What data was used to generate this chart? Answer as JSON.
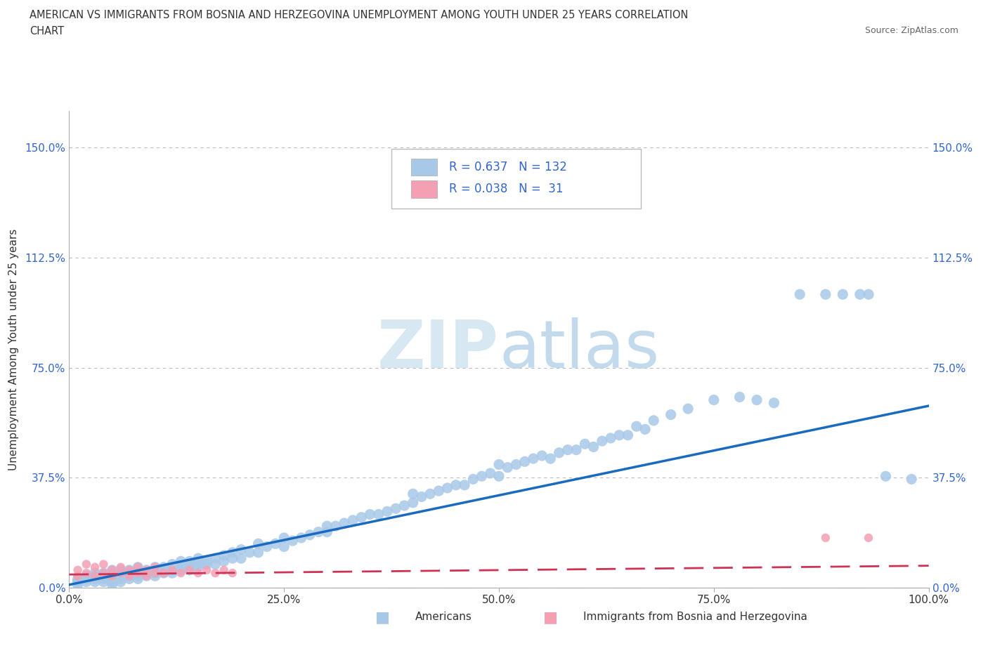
{
  "title_line1": "AMERICAN VS IMMIGRANTS FROM BOSNIA AND HERZEGOVINA UNEMPLOYMENT AMONG YOUTH UNDER 25 YEARS CORRELATION",
  "title_line2": "CHART",
  "source": "Source: ZipAtlas.com",
  "ylabel": "Unemployment Among Youth under 25 years",
  "xlim": [
    0.0,
    1.0
  ],
  "ylim": [
    0.0,
    1.625
  ],
  "xticks": [
    0.0,
    0.25,
    0.5,
    0.75,
    1.0
  ],
  "yticks": [
    0.0,
    0.375,
    0.75,
    1.125,
    1.5
  ],
  "xtick_labels": [
    "0.0%",
    "25.0%",
    "50.0%",
    "75.0%",
    "100.0%"
  ],
  "ytick_labels": [
    "0.0%",
    "37.5%",
    "75.0%",
    "112.5%",
    "150.0%"
  ],
  "color_american": "#a8c8e8",
  "color_immigrant": "#f4a0b4",
  "line_color_american": "#1a6bbf",
  "line_color_immigrant": "#cc3355",
  "R_american": 0.637,
  "N_american": 132,
  "R_immigrant": 0.038,
  "N_immigrant": 31,
  "watermark_zip": "ZIP",
  "watermark_atlas": "atlas",
  "legend_american": "Americans",
  "legend_immigrant": "Immigrants from Bosnia and Herzegovina",
  "am_line_x0": 0.0,
  "am_line_y0": 0.01,
  "am_line_x1": 1.0,
  "am_line_y1": 0.62,
  "im_line_x0": 0.0,
  "im_line_y0": 0.045,
  "im_line_x1": 1.0,
  "im_line_y1": 0.075,
  "americans_x": [
    0.01,
    0.01,
    0.01,
    0.01,
    0.02,
    0.02,
    0.02,
    0.02,
    0.03,
    0.03,
    0.03,
    0.03,
    0.04,
    0.04,
    0.04,
    0.04,
    0.05,
    0.05,
    0.05,
    0.05,
    0.05,
    0.05,
    0.06,
    0.06,
    0.06,
    0.06,
    0.07,
    0.07,
    0.07,
    0.07,
    0.08,
    0.08,
    0.08,
    0.08,
    0.09,
    0.09,
    0.09,
    0.1,
    0.1,
    0.1,
    0.1,
    0.11,
    0.11,
    0.11,
    0.12,
    0.12,
    0.12,
    0.13,
    0.13,
    0.13,
    0.14,
    0.14,
    0.14,
    0.15,
    0.15,
    0.15,
    0.16,
    0.16,
    0.17,
    0.17,
    0.18,
    0.18,
    0.19,
    0.19,
    0.2,
    0.2,
    0.21,
    0.22,
    0.22,
    0.23,
    0.24,
    0.25,
    0.25,
    0.26,
    0.27,
    0.28,
    0.29,
    0.3,
    0.3,
    0.31,
    0.32,
    0.33,
    0.34,
    0.35,
    0.36,
    0.37,
    0.38,
    0.39,
    0.4,
    0.4,
    0.41,
    0.42,
    0.43,
    0.44,
    0.45,
    0.46,
    0.47,
    0.48,
    0.49,
    0.5,
    0.5,
    0.51,
    0.52,
    0.53,
    0.54,
    0.55,
    0.56,
    0.57,
    0.58,
    0.59,
    0.6,
    0.61,
    0.62,
    0.63,
    0.64,
    0.65,
    0.66,
    0.67,
    0.68,
    0.7,
    0.72,
    0.75,
    0.78,
    0.8,
    0.82,
    0.85,
    0.88,
    0.9,
    0.92,
    0.93,
    0.95,
    0.98
  ],
  "americans_y": [
    0.01,
    0.02,
    0.02,
    0.03,
    0.02,
    0.03,
    0.03,
    0.04,
    0.02,
    0.03,
    0.04,
    0.05,
    0.02,
    0.03,
    0.04,
    0.05,
    0.01,
    0.02,
    0.03,
    0.04,
    0.05,
    0.06,
    0.02,
    0.03,
    0.05,
    0.06,
    0.03,
    0.04,
    0.05,
    0.06,
    0.03,
    0.04,
    0.05,
    0.07,
    0.04,
    0.05,
    0.06,
    0.04,
    0.05,
    0.06,
    0.07,
    0.05,
    0.06,
    0.07,
    0.05,
    0.06,
    0.08,
    0.06,
    0.07,
    0.09,
    0.06,
    0.08,
    0.09,
    0.07,
    0.08,
    0.1,
    0.08,
    0.09,
    0.08,
    0.1,
    0.09,
    0.11,
    0.1,
    0.12,
    0.1,
    0.13,
    0.12,
    0.12,
    0.15,
    0.14,
    0.15,
    0.14,
    0.17,
    0.16,
    0.17,
    0.18,
    0.19,
    0.19,
    0.21,
    0.21,
    0.22,
    0.23,
    0.24,
    0.25,
    0.25,
    0.26,
    0.27,
    0.28,
    0.29,
    0.32,
    0.31,
    0.32,
    0.33,
    0.34,
    0.35,
    0.35,
    0.37,
    0.38,
    0.39,
    0.38,
    0.42,
    0.41,
    0.42,
    0.43,
    0.44,
    0.45,
    0.44,
    0.46,
    0.47,
    0.47,
    0.49,
    0.48,
    0.5,
    0.51,
    0.52,
    0.52,
    0.55,
    0.54,
    0.57,
    0.59,
    0.61,
    0.64,
    0.65,
    0.64,
    0.63,
    1.0,
    1.0,
    1.0,
    1.0,
    1.0,
    0.38,
    0.37
  ],
  "immigrants_x": [
    0.01,
    0.01,
    0.02,
    0.02,
    0.03,
    0.03,
    0.04,
    0.04,
    0.05,
    0.05,
    0.06,
    0.06,
    0.07,
    0.07,
    0.08,
    0.08,
    0.09,
    0.09,
    0.1,
    0.1,
    0.11,
    0.12,
    0.13,
    0.14,
    0.15,
    0.16,
    0.17,
    0.18,
    0.19,
    0.88,
    0.93
  ],
  "immigrants_y": [
    0.04,
    0.06,
    0.05,
    0.08,
    0.04,
    0.07,
    0.05,
    0.08,
    0.04,
    0.06,
    0.05,
    0.07,
    0.04,
    0.06,
    0.05,
    0.07,
    0.04,
    0.06,
    0.05,
    0.07,
    0.05,
    0.06,
    0.05,
    0.06,
    0.05,
    0.06,
    0.05,
    0.06,
    0.05,
    0.17,
    0.17
  ]
}
